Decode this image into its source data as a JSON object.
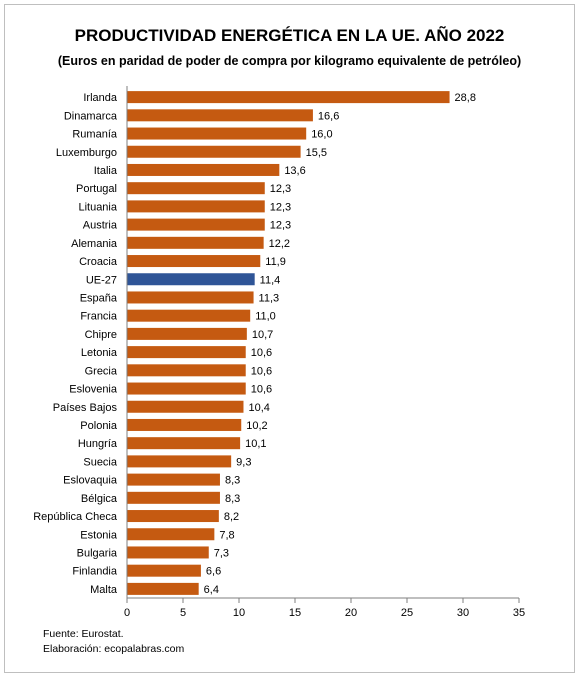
{
  "chart_data": {
    "type": "bar",
    "orientation": "horizontal",
    "title": "PRODUCTIVIDAD ENERGÉTICA EN LA UE. AÑO 2022",
    "subtitle": "(Euros en paridad de poder de compra por kilogramo equivalente de petróleo)",
    "categories": [
      "Irlanda",
      "Dinamarca",
      "Rumanía",
      "Luxemburgo",
      "Italia",
      "Portugal",
      "Lituania",
      "Austria",
      "Alemania",
      "Croacia",
      "UE-27",
      "España",
      "Francia",
      "Chipre",
      "Letonia",
      "Grecia",
      "Eslovenia",
      "Países Bajos",
      "Polonia",
      "Hungría",
      "Suecia",
      "Eslovaquia",
      "Bélgica",
      "República Checa",
      "Estonia",
      "Bulgaria",
      "Finlandia",
      "Malta"
    ],
    "values": [
      28.8,
      16.6,
      16.0,
      15.5,
      13.6,
      12.3,
      12.3,
      12.3,
      12.2,
      11.9,
      11.4,
      11.3,
      11.0,
      10.7,
      10.6,
      10.6,
      10.6,
      10.4,
      10.2,
      10.1,
      9.3,
      8.3,
      8.3,
      8.2,
      7.8,
      7.3,
      6.6,
      6.4
    ],
    "value_labels": [
      "28,8",
      "16,6",
      "16,0",
      "15,5",
      "13,6",
      "12,3",
      "12,3",
      "12,3",
      "12,2",
      "11,9",
      "11,4",
      "11,3",
      "11,0",
      "10,7",
      "10,6",
      "10,6",
      "10,6",
      "10,4",
      "10,2",
      "10,1",
      "9,3",
      "8,3",
      "8,3",
      "8,2",
      "7,8",
      "7,3",
      "6,6",
      "6,4"
    ],
    "highlight": "UE-27",
    "xlim": [
      0,
      35
    ],
    "xticks": [
      0,
      5,
      10,
      15,
      20,
      25,
      30,
      35
    ],
    "xtick_labels": [
      "0",
      "5",
      "10",
      "15",
      "20",
      "25",
      "30",
      "35"
    ],
    "grid": false,
    "colors": {
      "bar": "#C55A11",
      "highlight": "#2F5597",
      "axis": "#7f7f7f"
    }
  },
  "footer": {
    "source": "Fuente: Eurostat.",
    "credit": "Elaboración: ecopalabras.com"
  }
}
